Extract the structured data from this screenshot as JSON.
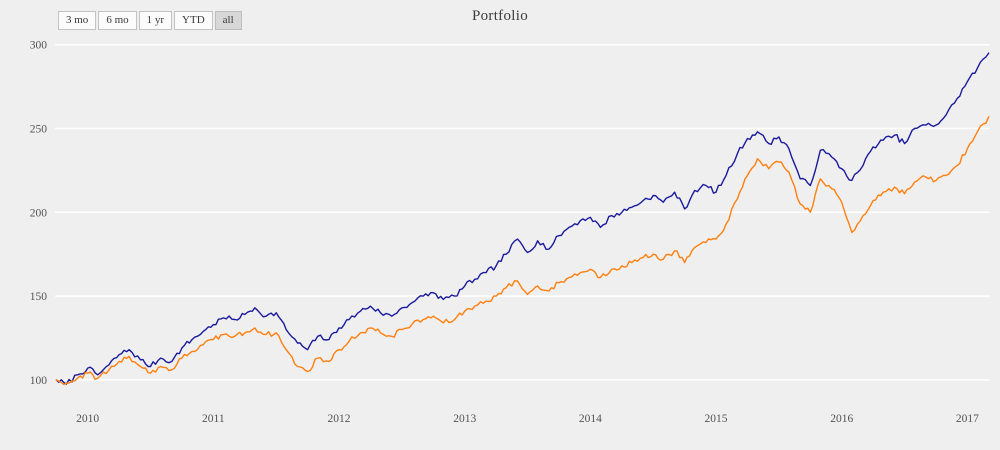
{
  "title": "Portfolio",
  "range_selector": {
    "buttons": [
      {
        "label": "3 mo",
        "active": false
      },
      {
        "label": "6 mo",
        "active": false
      },
      {
        "label": "1 yr",
        "active": false
      },
      {
        "label": "YTD",
        "active": false
      },
      {
        "label": "all",
        "active": true
      }
    ]
  },
  "colors": {
    "background": "#efefef",
    "gridline": "#ffffff",
    "series1": "#1a1a9e",
    "series2": "#ff7f0e",
    "tick_text": "#535353",
    "title_text": "#3c3c3c"
  },
  "chart_data": {
    "type": "line",
    "title": "Portfolio",
    "xlabel": "",
    "ylabel": "",
    "legend": "none",
    "grid": "horizontal white gridlines on light gray background",
    "x_ticks": [
      2010,
      2011,
      2012,
      2013,
      2014,
      2015,
      2016,
      2017
    ],
    "y_ticks": [
      100,
      150,
      200,
      250,
      300
    ],
    "xlim": [
      2009.74,
      2017.18
    ],
    "ylim": [
      85,
      304
    ],
    "series": [
      {
        "name": "series-1-navy",
        "color": "#1a1a9e",
        "points": [
          [
            2009.75,
            100
          ],
          [
            2009.83,
            97.5
          ],
          [
            2009.92,
            103
          ],
          [
            2010.0,
            107
          ],
          [
            2010.08,
            103
          ],
          [
            2010.17,
            109
          ],
          [
            2010.25,
            115
          ],
          [
            2010.33,
            118
          ],
          [
            2010.42,
            112
          ],
          [
            2010.5,
            108
          ],
          [
            2010.58,
            113
          ],
          [
            2010.67,
            111
          ],
          [
            2010.75,
            119
          ],
          [
            2010.83,
            124
          ],
          [
            2010.92,
            129
          ],
          [
            2011.0,
            133
          ],
          [
            2011.08,
            137
          ],
          [
            2011.17,
            136
          ],
          [
            2011.25,
            139
          ],
          [
            2011.33,
            143
          ],
          [
            2011.42,
            138
          ],
          [
            2011.5,
            140
          ],
          [
            2011.58,
            130
          ],
          [
            2011.67,
            122
          ],
          [
            2011.75,
            118
          ],
          [
            2011.83,
            126
          ],
          [
            2011.92,
            124
          ],
          [
            2012.0,
            131
          ],
          [
            2012.08,
            136
          ],
          [
            2012.17,
            141
          ],
          [
            2012.25,
            144
          ],
          [
            2012.33,
            140
          ],
          [
            2012.42,
            138
          ],
          [
            2012.5,
            143
          ],
          [
            2012.58,
            146
          ],
          [
            2012.67,
            150
          ],
          [
            2012.75,
            152
          ],
          [
            2012.83,
            148
          ],
          [
            2012.92,
            150
          ],
          [
            2013.0,
            156
          ],
          [
            2013.08,
            160
          ],
          [
            2013.17,
            164
          ],
          [
            2013.25,
            168
          ],
          [
            2013.33,
            175
          ],
          [
            2013.42,
            184
          ],
          [
            2013.5,
            176
          ],
          [
            2013.58,
            183
          ],
          [
            2013.67,
            178
          ],
          [
            2013.75,
            186
          ],
          [
            2013.83,
            191
          ],
          [
            2013.92,
            195
          ],
          [
            2014.0,
            197
          ],
          [
            2014.08,
            191
          ],
          [
            2014.17,
            198
          ],
          [
            2014.25,
            200
          ],
          [
            2014.33,
            203
          ],
          [
            2014.42,
            207
          ],
          [
            2014.5,
            210
          ],
          [
            2014.58,
            206
          ],
          [
            2014.67,
            212
          ],
          [
            2014.75,
            202
          ],
          [
            2014.83,
            213
          ],
          [
            2014.92,
            216
          ],
          [
            2015.0,
            212
          ],
          [
            2015.08,
            222
          ],
          [
            2015.17,
            235
          ],
          [
            2015.25,
            244
          ],
          [
            2015.33,
            248
          ],
          [
            2015.42,
            241
          ],
          [
            2015.5,
            245
          ],
          [
            2015.58,
            238
          ],
          [
            2015.67,
            220
          ],
          [
            2015.75,
            216
          ],
          [
            2015.83,
            237
          ],
          [
            2015.92,
            233
          ],
          [
            2016.0,
            226
          ],
          [
            2016.08,
            219
          ],
          [
            2016.17,
            228
          ],
          [
            2016.25,
            239
          ],
          [
            2016.33,
            243
          ],
          [
            2016.42,
            246
          ],
          [
            2016.5,
            241
          ],
          [
            2016.58,
            250
          ],
          [
            2016.67,
            252
          ],
          [
            2016.75,
            252
          ],
          [
            2016.83,
            258
          ],
          [
            2016.92,
            268
          ],
          [
            2017.0,
            278
          ],
          [
            2017.08,
            286
          ],
          [
            2017.17,
            295
          ]
        ]
      },
      {
        "name": "series-2-orange",
        "color": "#ff7f0e",
        "points": [
          [
            2009.75,
            100
          ],
          [
            2009.83,
            98
          ],
          [
            2009.92,
            101
          ],
          [
            2010.0,
            104
          ],
          [
            2010.08,
            101
          ],
          [
            2010.17,
            106
          ],
          [
            2010.25,
            111
          ],
          [
            2010.33,
            114
          ],
          [
            2010.42,
            108
          ],
          [
            2010.5,
            104
          ],
          [
            2010.58,
            108
          ],
          [
            2010.67,
            106
          ],
          [
            2010.75,
            113
          ],
          [
            2010.83,
            117
          ],
          [
            2010.92,
            121
          ],
          [
            2011.0,
            124
          ],
          [
            2011.08,
            127
          ],
          [
            2011.17,
            126
          ],
          [
            2011.25,
            128
          ],
          [
            2011.33,
            131
          ],
          [
            2011.42,
            127
          ],
          [
            2011.5,
            128
          ],
          [
            2011.58,
            118
          ],
          [
            2011.67,
            108
          ],
          [
            2011.75,
            105
          ],
          [
            2011.83,
            113
          ],
          [
            2011.92,
            111
          ],
          [
            2012.0,
            118
          ],
          [
            2012.08,
            123
          ],
          [
            2012.17,
            128
          ],
          [
            2012.25,
            131
          ],
          [
            2012.33,
            128
          ],
          [
            2012.42,
            126
          ],
          [
            2012.5,
            130
          ],
          [
            2012.58,
            133
          ],
          [
            2012.67,
            136
          ],
          [
            2012.75,
            138
          ],
          [
            2012.83,
            134
          ],
          [
            2012.92,
            136
          ],
          [
            2013.0,
            141
          ],
          [
            2013.08,
            144
          ],
          [
            2013.17,
            147
          ],
          [
            2013.25,
            150
          ],
          [
            2013.33,
            155
          ],
          [
            2013.42,
            159
          ],
          [
            2013.5,
            151
          ],
          [
            2013.58,
            156
          ],
          [
            2013.67,
            153
          ],
          [
            2013.75,
            158
          ],
          [
            2013.83,
            161
          ],
          [
            2013.92,
            164
          ],
          [
            2014.0,
            166
          ],
          [
            2014.08,
            161
          ],
          [
            2014.17,
            166
          ],
          [
            2014.25,
            168
          ],
          [
            2014.33,
            170
          ],
          [
            2014.42,
            173
          ],
          [
            2014.5,
            175
          ],
          [
            2014.58,
            172
          ],
          [
            2014.67,
            177
          ],
          [
            2014.75,
            170
          ],
          [
            2014.83,
            179
          ],
          [
            2014.92,
            182
          ],
          [
            2015.0,
            184
          ],
          [
            2015.08,
            193
          ],
          [
            2015.17,
            208
          ],
          [
            2015.25,
            222
          ],
          [
            2015.33,
            232
          ],
          [
            2015.42,
            226
          ],
          [
            2015.5,
            230
          ],
          [
            2015.58,
            224
          ],
          [
            2015.67,
            205
          ],
          [
            2015.75,
            200
          ],
          [
            2015.83,
            220
          ],
          [
            2015.92,
            214
          ],
          [
            2016.0,
            206
          ],
          [
            2016.08,
            188
          ],
          [
            2016.17,
            198
          ],
          [
            2016.25,
            207
          ],
          [
            2016.33,
            212
          ],
          [
            2016.42,
            215
          ],
          [
            2016.5,
            211
          ],
          [
            2016.58,
            218
          ],
          [
            2016.67,
            221
          ],
          [
            2016.75,
            219
          ],
          [
            2016.83,
            222
          ],
          [
            2016.92,
            228
          ],
          [
            2017.0,
            238
          ],
          [
            2017.08,
            248
          ],
          [
            2017.17,
            257
          ]
        ]
      }
    ]
  }
}
